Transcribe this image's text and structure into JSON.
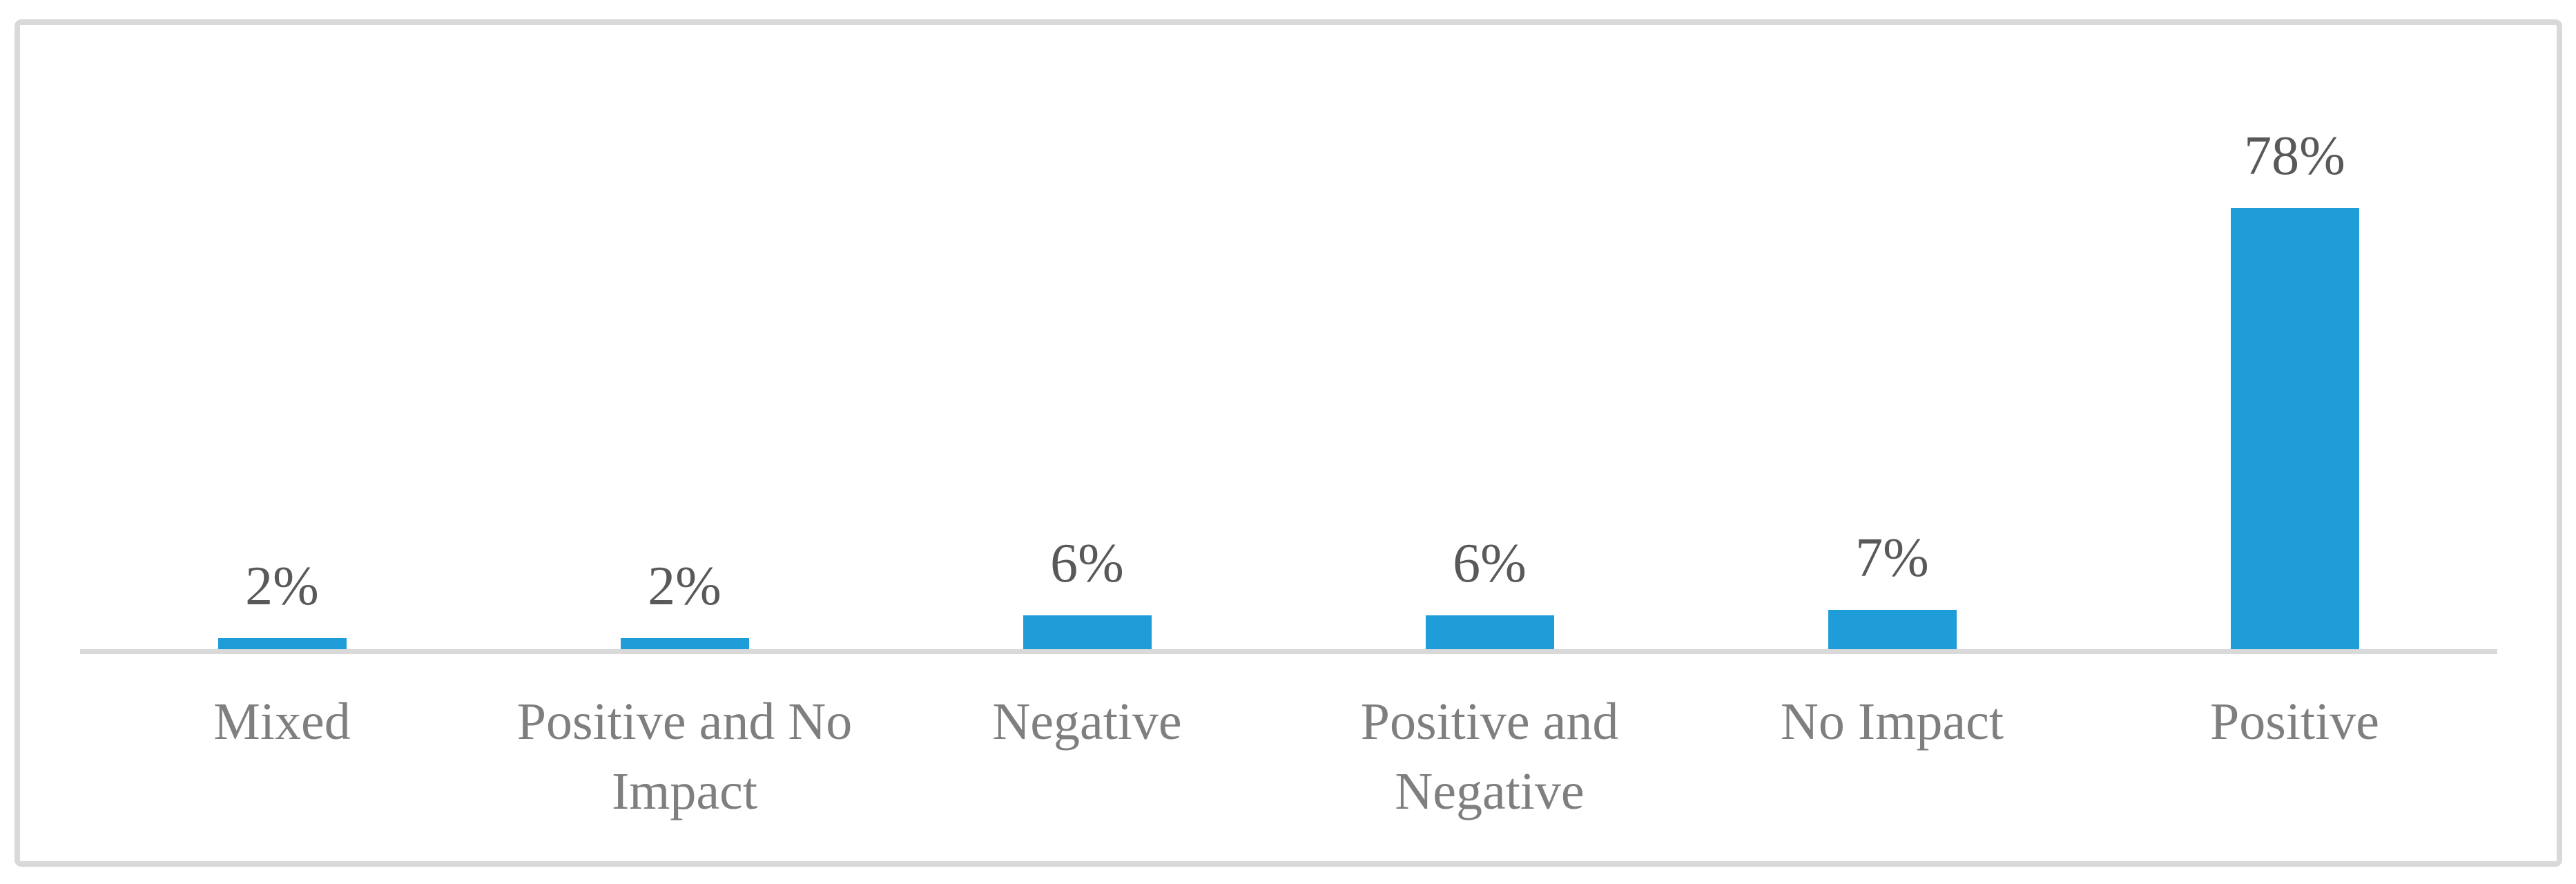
{
  "figure": {
    "background": "#FFFFFF",
    "border_color": "#D9D9D9"
  },
  "chart_data": {
    "type": "bar",
    "orientation": "vertical",
    "title": "",
    "xlabel": "",
    "ylabel": "",
    "unit": "percent",
    "ylim": [
      0,
      78
    ],
    "grid": false,
    "legend": false,
    "y_axis_visible": false,
    "x_axis_line_visible": true,
    "categories": [
      "Mixed",
      "Positive and No Impact",
      "Negative",
      "Positive and Negative",
      "No Impact",
      "Positive"
    ],
    "category_label_lines": [
      [
        "Mixed"
      ],
      [
        "Positive and No",
        "Impact"
      ],
      [
        "Negative"
      ],
      [
        "Positive and",
        "Negative"
      ],
      [
        "No Impact"
      ],
      [
        "Positive"
      ]
    ],
    "values": [
      2,
      2,
      6,
      6,
      7,
      78
    ],
    "data_labels": [
      "2%",
      "2%",
      "6%",
      "6%",
      "7%",
      "78%"
    ],
    "bar_color": "#1F9DD8",
    "axis_line_color": "#D9D9D9",
    "data_label_color": "#595959",
    "category_label_color": "#7F7F7F"
  }
}
